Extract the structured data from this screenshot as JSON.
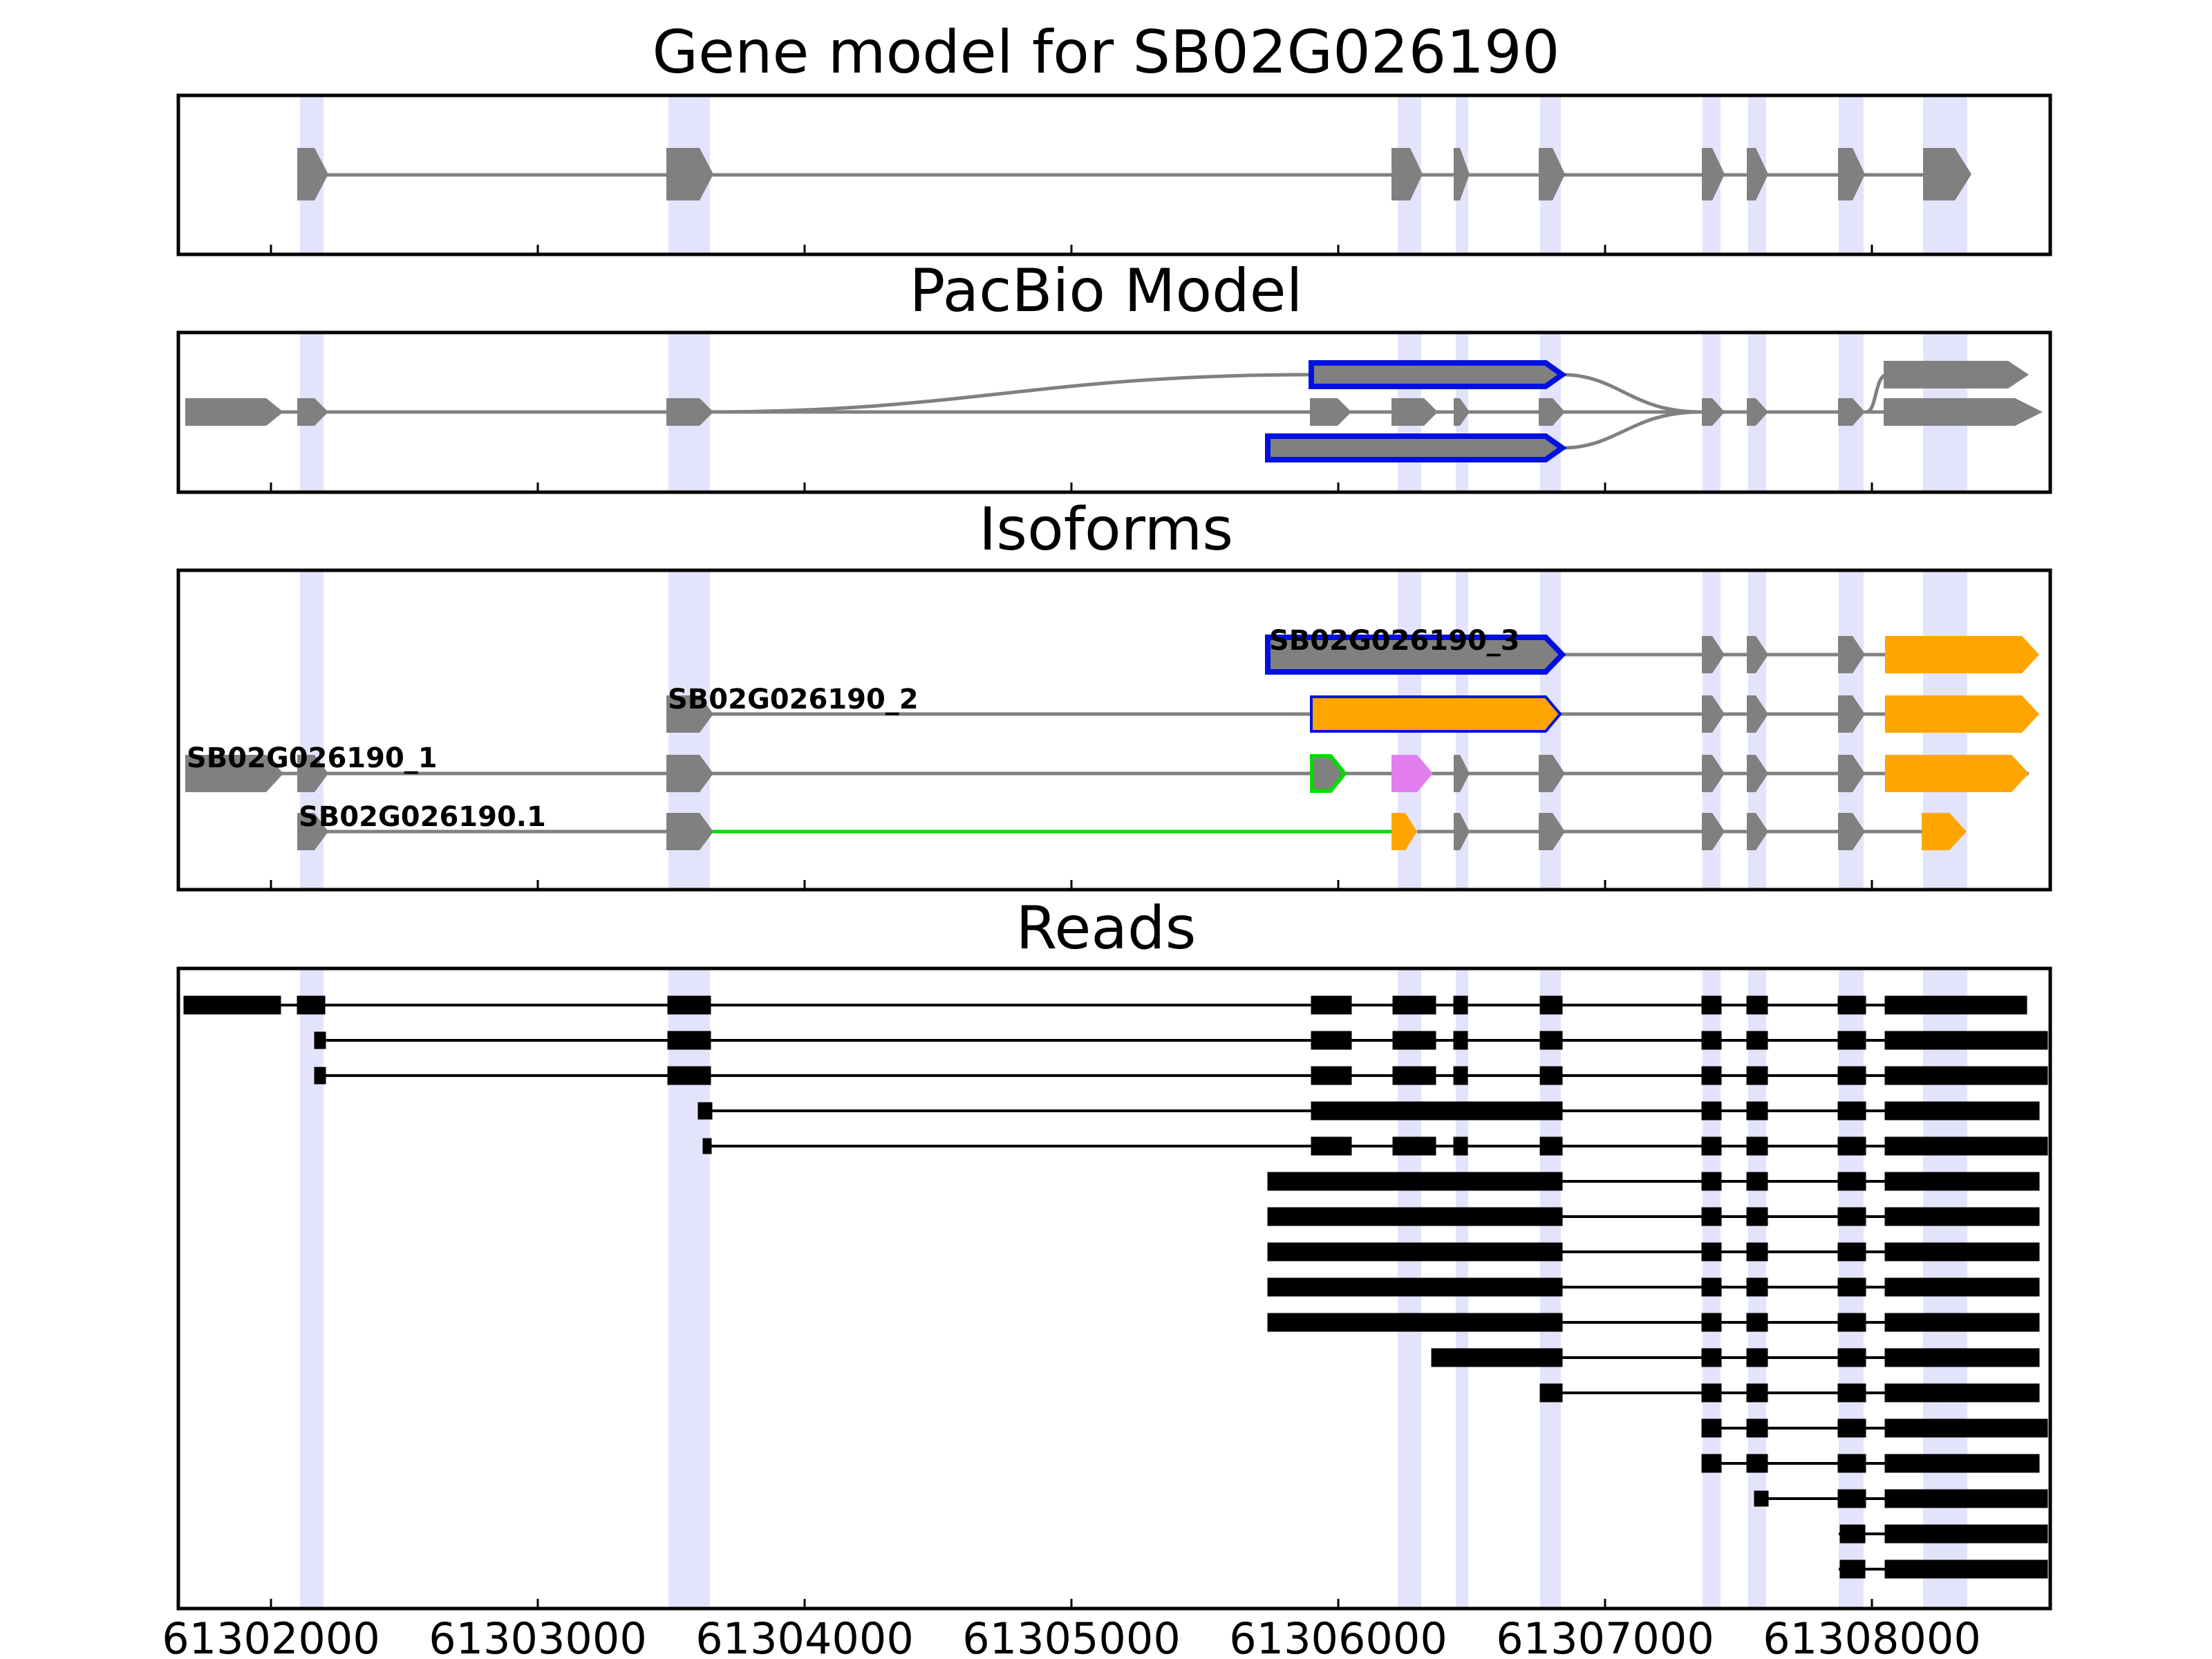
{
  "figure": {
    "panels": [
      {
        "title": "Gene model for SB02G026190"
      },
      {
        "title": "PacBio Model"
      },
      {
        "title": "Isoforms"
      },
      {
        "title": "Reads"
      }
    ],
    "x_tick_labels": [
      "61302000",
      "61303000",
      "61304000",
      "61305000",
      "61306000",
      "61307000",
      "61308000"
    ],
    "isoform_labels": [
      "SB02G026190_3",
      "SB02G026190_2",
      "SB02G026190_1",
      "SB02G026190.1"
    ],
    "colors": {
      "highlight": "#e3e3fb",
      "exon": "#808080",
      "orange": "#ffa500",
      "blue": "#0010e0",
      "green": "#00dd00",
      "violet": "#e27ef0",
      "read": "#000000"
    }
  }
}
